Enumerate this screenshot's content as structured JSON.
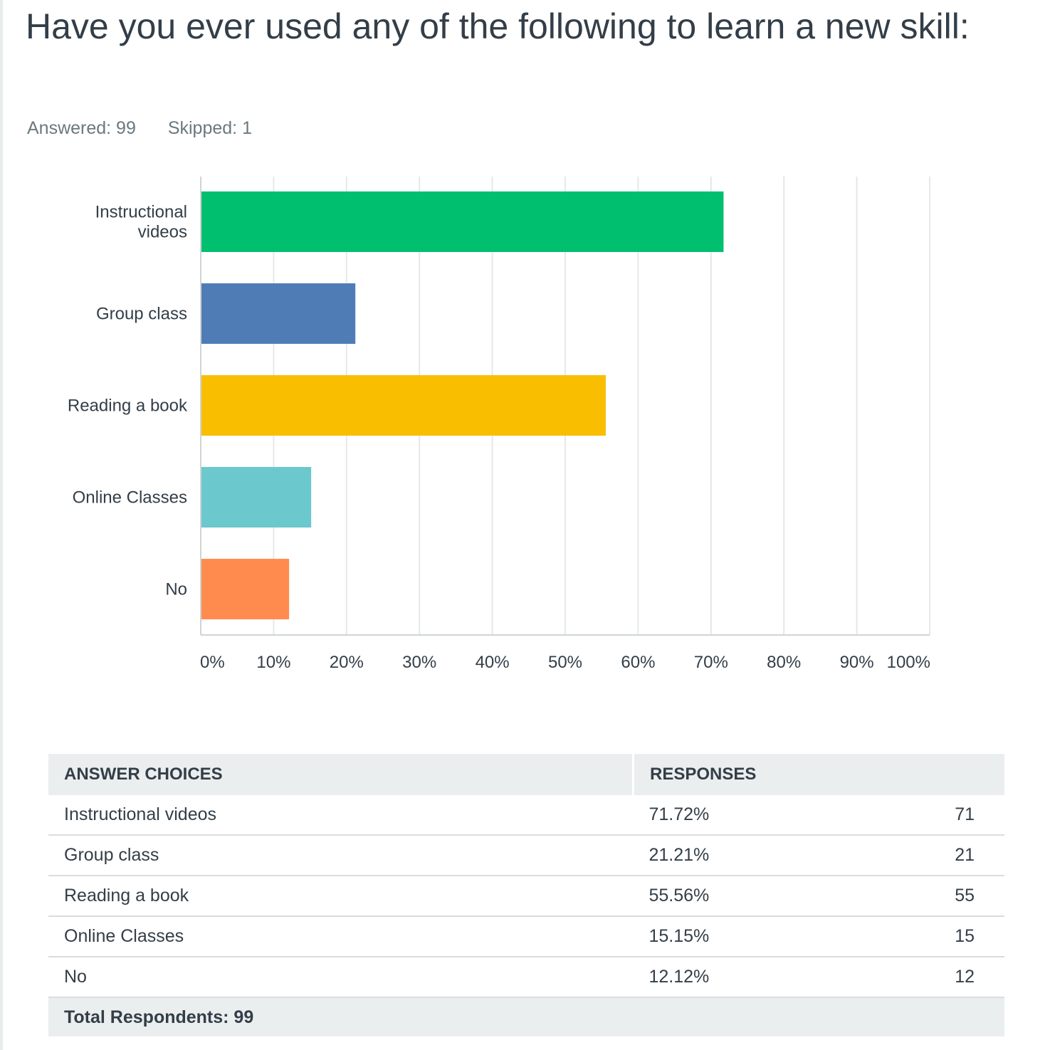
{
  "question": {
    "title": "Have you ever used any of the following to learn a new skill:",
    "answered_label": "Answered: 99",
    "skipped_label": "Skipped: 1"
  },
  "chart_data": {
    "type": "bar",
    "orientation": "horizontal",
    "categories": [
      "Instructional videos",
      "Group class",
      "Reading a book",
      "Online Classes",
      "No"
    ],
    "category_label_lines": [
      [
        "Instructional",
        "videos"
      ],
      [
        "Group class"
      ],
      [
        "Reading a book"
      ],
      [
        "Online Classes"
      ],
      [
        "No"
      ]
    ],
    "values": [
      71.72,
      21.21,
      55.56,
      15.15,
      12.12
    ],
    "colors": [
      "#00bf6f",
      "#507cb6",
      "#f9be00",
      "#6bc8cd",
      "#ff8b4f"
    ],
    "xlim": [
      0,
      100
    ],
    "x_ticks": [
      "0%",
      "10%",
      "20%",
      "30%",
      "40%",
      "50%",
      "60%",
      "70%",
      "80%",
      "90%",
      "100%"
    ],
    "grid": true,
    "gridline_color": "#e5e8e8",
    "axis_color": "#d0d4d4"
  },
  "table": {
    "headers": {
      "choice": "ANSWER CHOICES",
      "responses": "RESPONSES"
    },
    "rows": [
      {
        "choice": "Instructional videos",
        "percent": "71.72%",
        "count": "71"
      },
      {
        "choice": "Group class",
        "percent": "21.21%",
        "count": "21"
      },
      {
        "choice": "Reading a book",
        "percent": "55.56%",
        "count": "55"
      },
      {
        "choice": "Online Classes",
        "percent": "15.15%",
        "count": "15"
      },
      {
        "choice": "No",
        "percent": "12.12%",
        "count": "12"
      }
    ],
    "total_label": "Total Respondents: 99"
  }
}
